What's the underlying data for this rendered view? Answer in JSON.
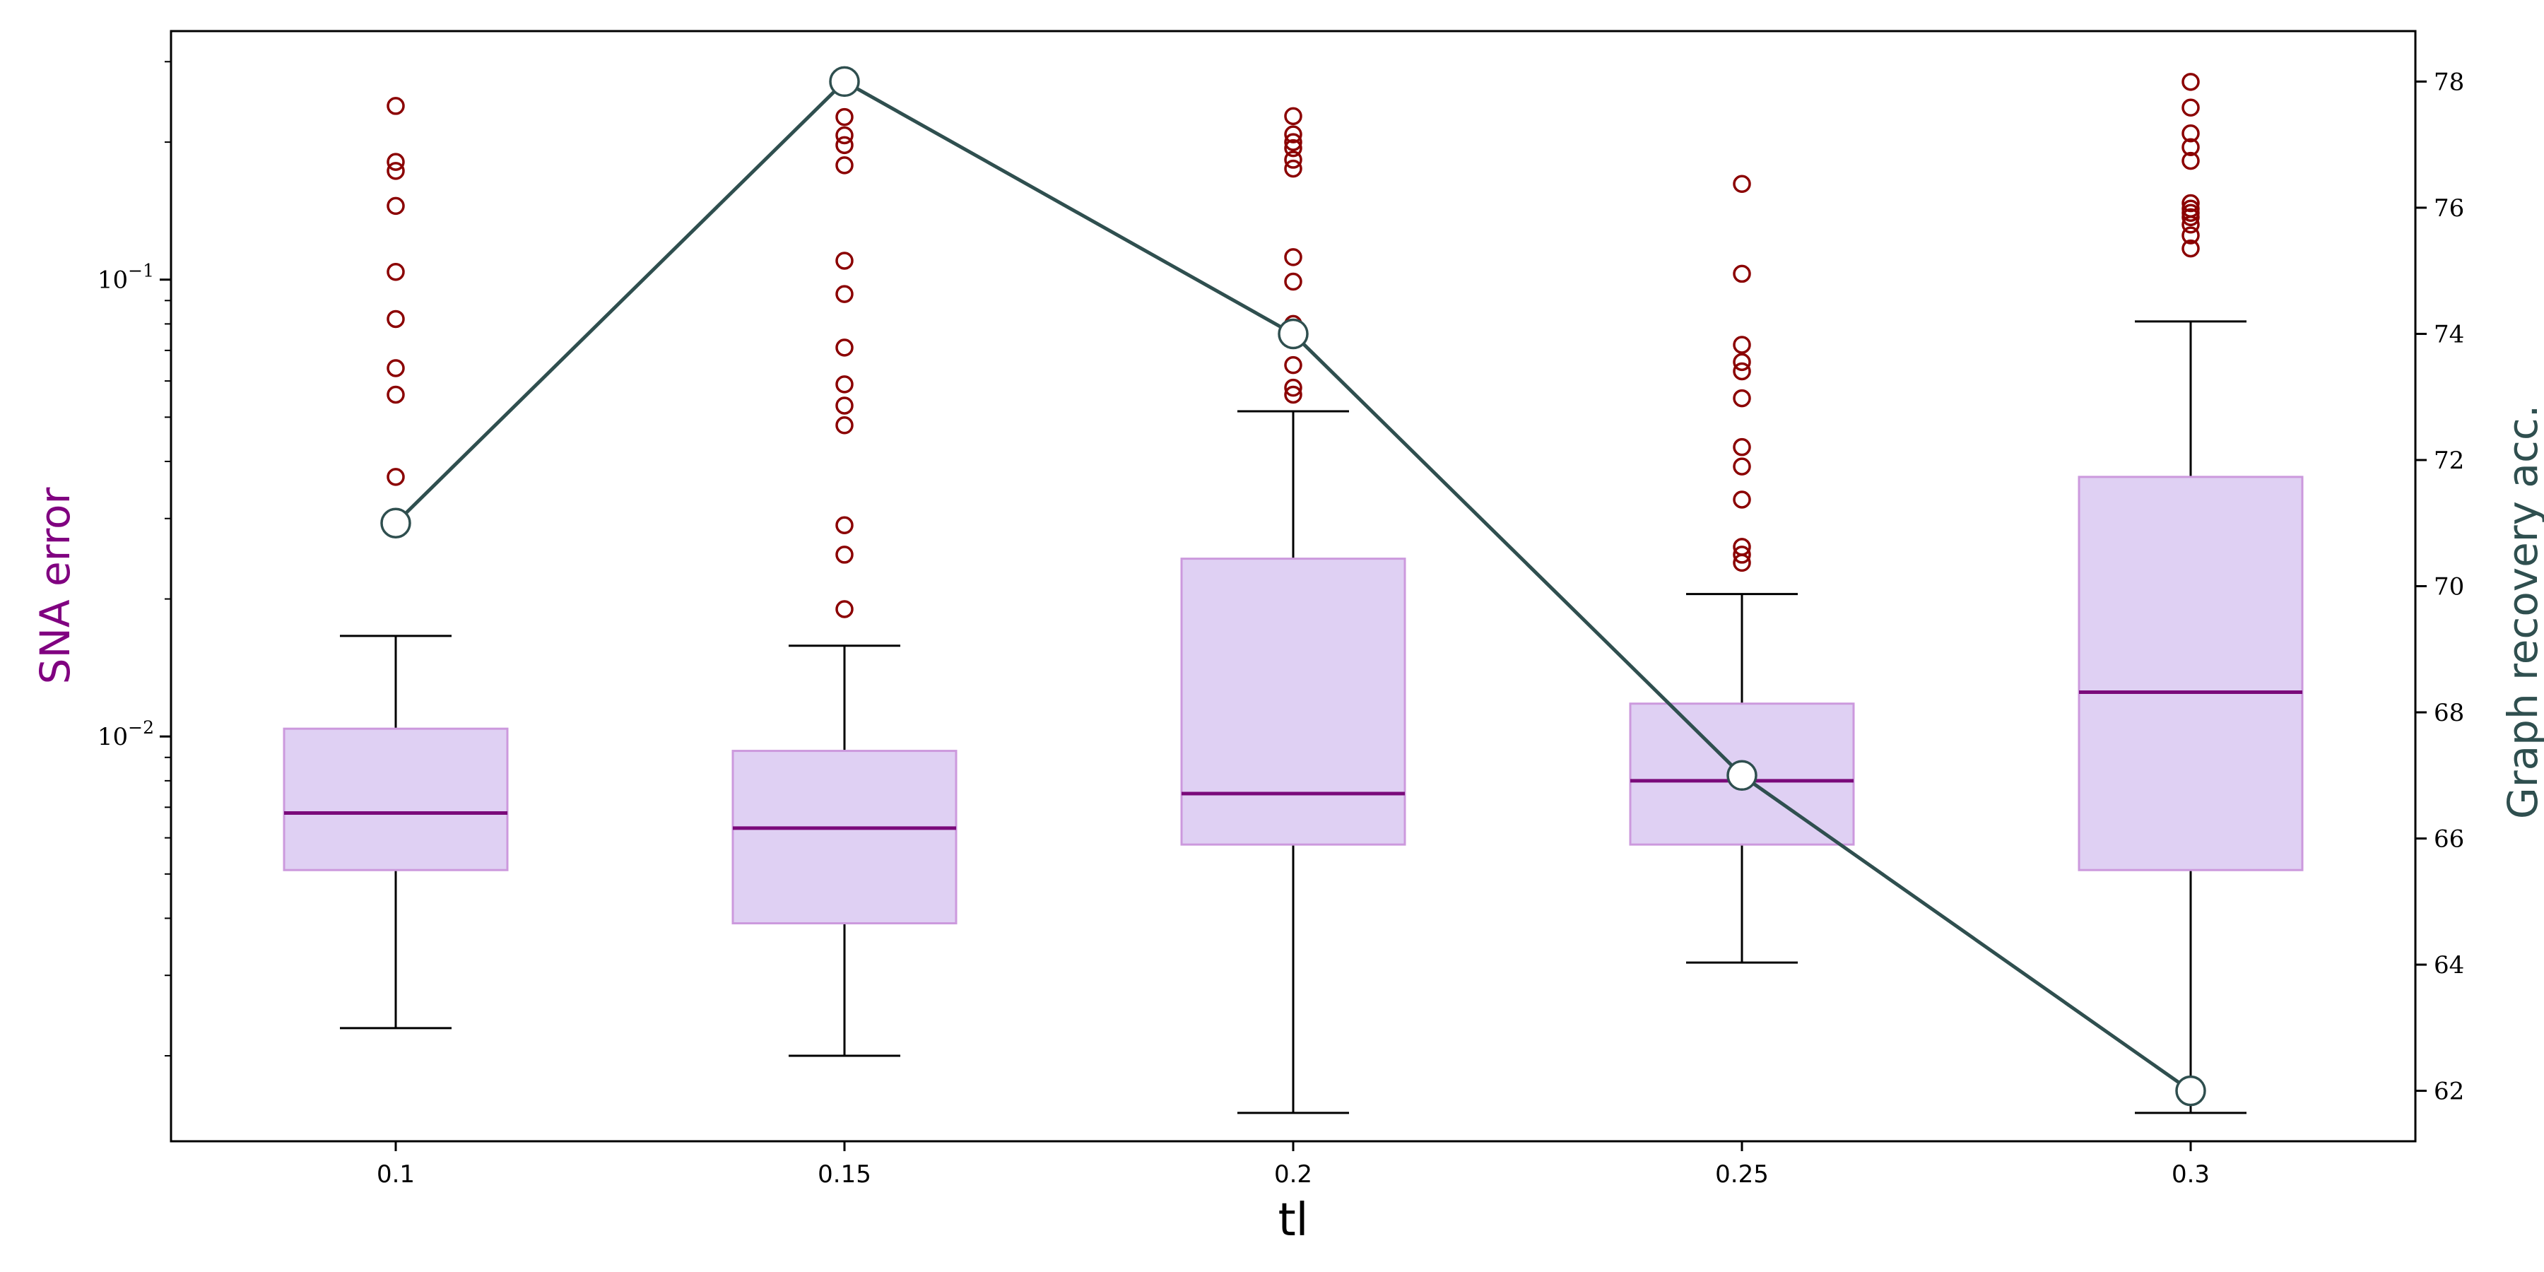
{
  "chart_data": {
    "type": "box",
    "xlabel": "tl",
    "ylabel_left": "SNA error",
    "ylabel_right": "Graph recovery acc.",
    "categories": [
      "0.1",
      "0.15",
      "0.2",
      "0.25",
      "0.3"
    ],
    "left_axis": {
      "scale": "log",
      "ylim": [
        0.0013,
        0.35
      ],
      "ticks": [
        {
          "value": 0.1,
          "label": "10^-1"
        },
        {
          "value": 0.01,
          "label": "10^-2"
        }
      ]
    },
    "right_axis": {
      "scale": "linear",
      "ylim": [
        61.2,
        78.8
      ],
      "ticks": [
        62,
        64,
        66,
        68,
        70,
        72,
        74,
        76,
        78
      ]
    },
    "boxes": [
      {
        "category": "0.1",
        "whisker_low": 0.0023,
        "q1": 0.0051,
        "median": 0.0068,
        "q3": 0.0104,
        "whisker_high": 0.0166,
        "outliers": [
          0.029,
          0.037,
          0.056,
          0.064,
          0.082,
          0.104,
          0.145,
          0.173,
          0.181,
          0.24
        ]
      },
      {
        "category": "0.15",
        "whisker_low": 0.002,
        "q1": 0.0039,
        "median": 0.0063,
        "q3": 0.0093,
        "whisker_high": 0.0158,
        "outliers": [
          0.019,
          0.025,
          0.029,
          0.048,
          0.053,
          0.059,
          0.071,
          0.093,
          0.11,
          0.178,
          0.197,
          0.207,
          0.227
        ]
      },
      {
        "category": "0.2",
        "whisker_low": 0.0015,
        "q1": 0.0058,
        "median": 0.0075,
        "q3": 0.0245,
        "whisker_high": 0.0515,
        "outliers": [
          0.056,
          0.058,
          0.065,
          0.076,
          0.08,
          0.099,
          0.112,
          0.175,
          0.183,
          0.194,
          0.2,
          0.208,
          0.228
        ]
      },
      {
        "category": "0.25",
        "whisker_low": 0.0032,
        "q1": 0.0058,
        "median": 0.008,
        "q3": 0.0118,
        "whisker_high": 0.0205,
        "outliers": [
          0.024,
          0.025,
          0.026,
          0.033,
          0.039,
          0.043,
          0.055,
          0.063,
          0.066,
          0.072,
          0.103,
          0.162
        ]
      },
      {
        "category": "0.3",
        "whisker_low": 0.0015,
        "q1": 0.0051,
        "median": 0.0125,
        "q3": 0.037,
        "whisker_high": 0.081,
        "outliers": [
          0.117,
          0.125,
          0.132,
          0.137,
          0.14,
          0.143,
          0.147,
          0.182,
          0.195,
          0.209,
          0.238,
          0.271
        ]
      }
    ],
    "line_series": {
      "axis": "right",
      "values": [
        71,
        78,
        74,
        67,
        62
      ]
    },
    "colors": {
      "box_fill": "#dfd0f3",
      "box_edge": "#cc99dd",
      "median": "#7a0a7a",
      "outlier": "#8b0000",
      "whisker": "#000000",
      "line": "#2f4f4f",
      "marker_fill": "#ffffff",
      "left_label": "#800080",
      "right_label": "#2f4f4f"
    },
    "grid": false,
    "legend": "none"
  }
}
